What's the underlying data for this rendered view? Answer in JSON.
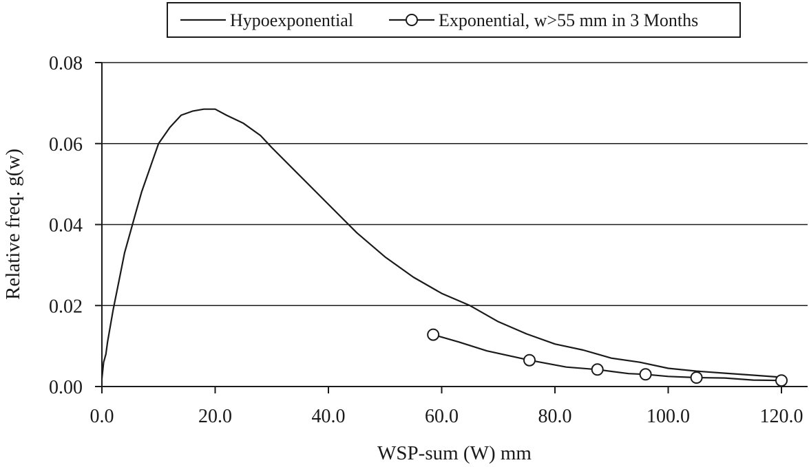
{
  "chart_data": {
    "type": "line",
    "xlabel": "WSP-sum (W) mm",
    "ylabel": "Relative freq. g(w)",
    "xlim": [
      0,
      120
    ],
    "ylim": [
      0,
      0.08
    ],
    "x_ticks": [
      "0.0",
      "20.0",
      "40.0",
      "60.0",
      "80.0",
      "100.0",
      "120.0"
    ],
    "y_ticks": [
      "0.00",
      "0.02",
      "0.04",
      "0.06",
      "0.08"
    ],
    "grid": "horizontal",
    "legend_position": "top",
    "series": [
      {
        "name": "Hypoexponential",
        "marker": "none",
        "color": "#1a1a1a",
        "points": [
          [
            0.0,
            0.002
          ],
          [
            0.3,
            0.006
          ],
          [
            0.7,
            0.008
          ],
          [
            1.0,
            0.011
          ],
          [
            1.5,
            0.015
          ],
          [
            2.0,
            0.019
          ],
          [
            3.0,
            0.026
          ],
          [
            4.0,
            0.033
          ],
          [
            5.0,
            0.038
          ],
          [
            6.0,
            0.043
          ],
          [
            7.0,
            0.048
          ],
          [
            8.0,
            0.052
          ],
          [
            9.0,
            0.056
          ],
          [
            10.0,
            0.06
          ],
          [
            12.0,
            0.064
          ],
          [
            14.0,
            0.067
          ],
          [
            16.0,
            0.068
          ],
          [
            18.0,
            0.0685
          ],
          [
            20.0,
            0.0685
          ],
          [
            22.0,
            0.067
          ],
          [
            25.0,
            0.065
          ],
          [
            28.0,
            0.062
          ],
          [
            30.0,
            0.059
          ],
          [
            35.0,
            0.052
          ],
          [
            40.0,
            0.045
          ],
          [
            45.0,
            0.038
          ],
          [
            50.0,
            0.032
          ],
          [
            55.0,
            0.027
          ],
          [
            60.0,
            0.023
          ],
          [
            65.0,
            0.02
          ],
          [
            70.0,
            0.016
          ],
          [
            75.0,
            0.013
          ],
          [
            80.0,
            0.0105
          ],
          [
            85.0,
            0.009
          ],
          [
            90.0,
            0.007
          ],
          [
            95.0,
            0.006
          ],
          [
            100.0,
            0.0045
          ],
          [
            105.0,
            0.0038
          ],
          [
            110.0,
            0.0033
          ],
          [
            115.0,
            0.0028
          ],
          [
            120.0,
            0.0023
          ]
        ]
      },
      {
        "name": "Exponential, w>55 mm in 3 Months",
        "marker": "circle",
        "color": "#1a1a1a",
        "points": [
          [
            58.5,
            0.0128
          ],
          [
            63.0,
            0.011
          ],
          [
            68.0,
            0.0088
          ],
          [
            75.5,
            0.0065
          ],
          [
            82.0,
            0.0048
          ],
          [
            87.5,
            0.0042
          ],
          [
            93.0,
            0.0032
          ],
          [
            96.0,
            0.003
          ],
          [
            100.0,
            0.0025
          ],
          [
            105.0,
            0.0022
          ],
          [
            110.0,
            0.0021
          ],
          [
            115.0,
            0.0016
          ],
          [
            120.0,
            0.0015
          ]
        ],
        "marker_points": [
          [
            58.5,
            0.0128
          ],
          [
            75.5,
            0.0065
          ],
          [
            87.5,
            0.0042
          ],
          [
            96.0,
            0.003
          ],
          [
            105.0,
            0.0022
          ],
          [
            120.0,
            0.0015
          ]
        ]
      }
    ]
  }
}
